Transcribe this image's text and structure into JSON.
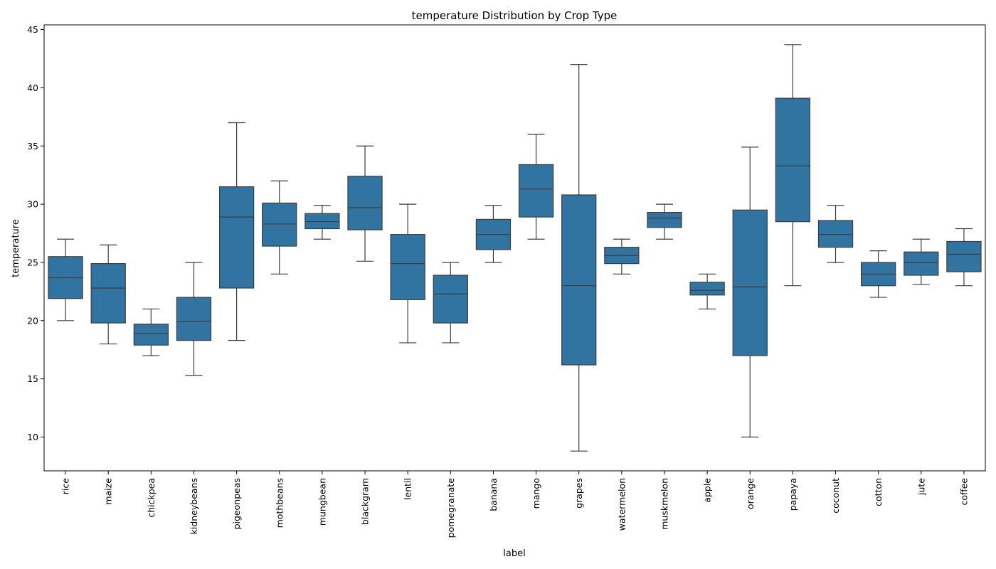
{
  "chart_data": {
    "type": "box",
    "title": "temperature Distribution by Crop Type",
    "xlabel": "label",
    "ylabel": "temperature",
    "ylim": [
      7.1,
      45.4
    ],
    "yticks": [
      10,
      15,
      20,
      25,
      30,
      35,
      40,
      45
    ],
    "grid": false,
    "legend": "none",
    "box_color": "#3274a1",
    "line_color": "#3d3d3d",
    "categories": [
      "rice",
      "maize",
      "chickpea",
      "kidneybeans",
      "pigeonpeas",
      "mothbeans",
      "mungbean",
      "blackgram",
      "lentil",
      "pomegranate",
      "banana",
      "mango",
      "grapes",
      "watermelon",
      "muskmelon",
      "apple",
      "orange",
      "papaya",
      "coconut",
      "cotton",
      "jute",
      "coffee"
    ],
    "boxes": [
      {
        "label": "rice",
        "whislo": 20.0,
        "q1": 21.9,
        "med": 23.7,
        "q3": 25.5,
        "whishi": 27.0
      },
      {
        "label": "maize",
        "whislo": 18.0,
        "q1": 19.8,
        "med": 22.8,
        "q3": 24.9,
        "whishi": 26.5
      },
      {
        "label": "chickpea",
        "whislo": 17.0,
        "q1": 17.9,
        "med": 18.9,
        "q3": 19.7,
        "whishi": 21.0
      },
      {
        "label": "kidneybeans",
        "whislo": 15.3,
        "q1": 18.3,
        "med": 19.9,
        "q3": 22.0,
        "whishi": 25.0
      },
      {
        "label": "pigeonpeas",
        "whislo": 18.3,
        "q1": 22.8,
        "med": 28.9,
        "q3": 31.5,
        "whishi": 37.0
      },
      {
        "label": "mothbeans",
        "whislo": 24.0,
        "q1": 26.4,
        "med": 28.3,
        "q3": 30.1,
        "whishi": 32.0
      },
      {
        "label": "mungbean",
        "whislo": 27.0,
        "q1": 27.9,
        "med": 28.5,
        "q3": 29.2,
        "whishi": 29.9
      },
      {
        "label": "blackgram",
        "whislo": 25.1,
        "q1": 27.8,
        "med": 29.7,
        "q3": 32.4,
        "whishi": 35.0
      },
      {
        "label": "lentil",
        "whislo": 18.1,
        "q1": 21.8,
        "med": 24.9,
        "q3": 27.4,
        "whishi": 30.0
      },
      {
        "label": "pomegranate",
        "whislo": 18.1,
        "q1": 19.8,
        "med": 22.3,
        "q3": 23.9,
        "whishi": 25.0
      },
      {
        "label": "banana",
        "whislo": 25.0,
        "q1": 26.1,
        "med": 27.4,
        "q3": 28.7,
        "whishi": 29.9
      },
      {
        "label": "mango",
        "whislo": 27.0,
        "q1": 28.9,
        "med": 31.3,
        "q3": 33.4,
        "whishi": 36.0
      },
      {
        "label": "grapes",
        "whislo": 8.8,
        "q1": 16.2,
        "med": 23.0,
        "q3": 30.8,
        "whishi": 42.0
      },
      {
        "label": "watermelon",
        "whislo": 24.0,
        "q1": 24.9,
        "med": 25.6,
        "q3": 26.3,
        "whishi": 27.0
      },
      {
        "label": "muskmelon",
        "whislo": 27.0,
        "q1": 28.0,
        "med": 28.8,
        "q3": 29.3,
        "whishi": 30.0
      },
      {
        "label": "apple",
        "whislo": 21.0,
        "q1": 22.2,
        "med": 22.6,
        "q3": 23.3,
        "whishi": 24.0
      },
      {
        "label": "orange",
        "whislo": 10.0,
        "q1": 17.0,
        "med": 22.9,
        "q3": 29.5,
        "whishi": 34.9
      },
      {
        "label": "papaya",
        "whislo": 23.0,
        "q1": 28.5,
        "med": 33.3,
        "q3": 39.1,
        "whishi": 43.7
      },
      {
        "label": "coconut",
        "whislo": 25.0,
        "q1": 26.3,
        "med": 27.4,
        "q3": 28.6,
        "whishi": 29.9
      },
      {
        "label": "cotton",
        "whislo": 22.0,
        "q1": 23.0,
        "med": 24.0,
        "q3": 25.0,
        "whishi": 26.0
      },
      {
        "label": "jute",
        "whislo": 23.1,
        "q1": 23.9,
        "med": 25.0,
        "q3": 25.9,
        "whishi": 27.0
      },
      {
        "label": "coffee",
        "whislo": 23.0,
        "q1": 24.2,
        "med": 25.7,
        "q3": 26.8,
        "whishi": 27.9
      }
    ]
  }
}
